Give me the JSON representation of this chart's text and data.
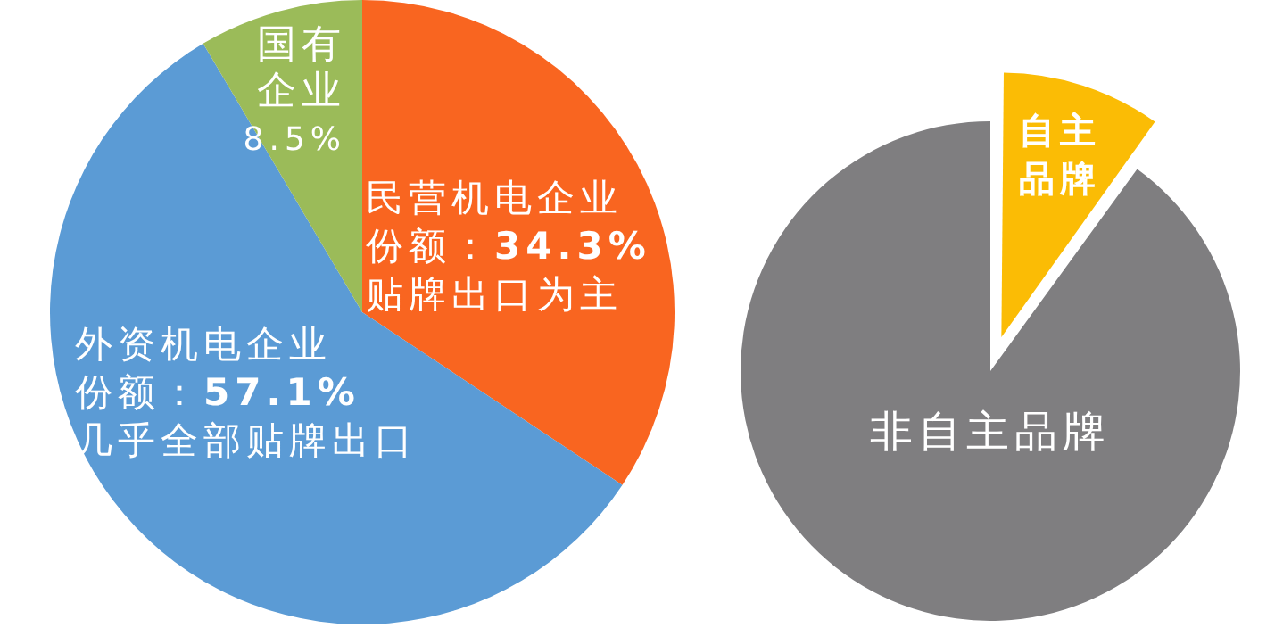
{
  "chart_data": [
    {
      "type": "pie",
      "categories": [
        "民营机电企业",
        "外资机电企业",
        "国有企业"
      ],
      "values": [
        34.3,
        57.1,
        8.5
      ],
      "colors": [
        "#f96520",
        "#5b9bd5",
        "#9bbb59"
      ],
      "value_labels": [
        "份额：34.3%",
        "份额：57.1%",
        "8.5%"
      ],
      "annotations": [
        {
          "text": "贴牌出口为主",
          "x": "民营机电企业"
        },
        {
          "text": "几乎全部贴牌出口",
          "x": "外资机电企业"
        }
      ]
    },
    {
      "type": "pie",
      "categories": [
        "自主品牌",
        "非自主品牌"
      ],
      "values": [
        10,
        90
      ],
      "colors": [
        "#fbbc05",
        "#7f7e80"
      ]
    }
  ]
}
